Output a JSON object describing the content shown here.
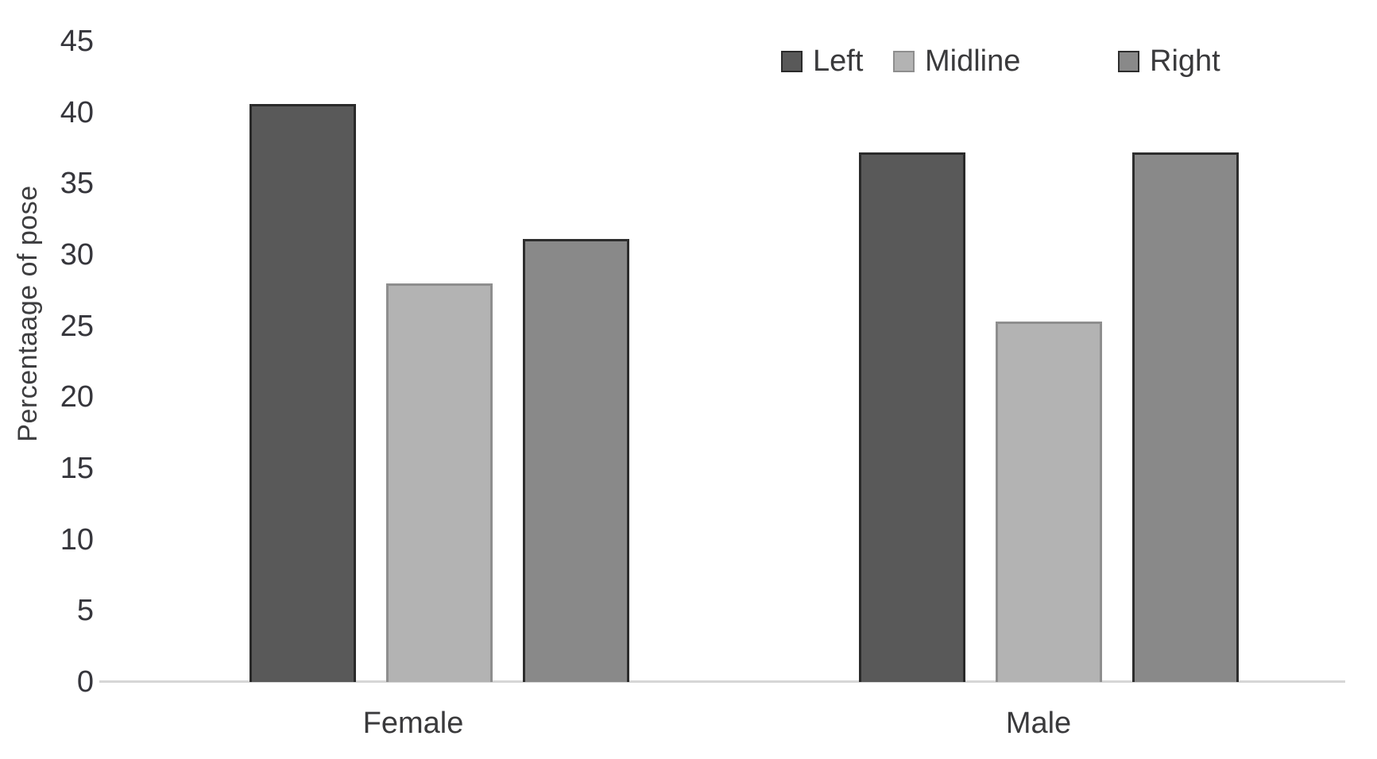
{
  "chart_data": {
    "type": "bar",
    "title": "",
    "xlabel": "",
    "ylabel": "Percentaage of pose",
    "categories": [
      "Female",
      "Male"
    ],
    "series": [
      {
        "name": "Left",
        "values": [
          40.6,
          37.2
        ],
        "color": "#595959",
        "border": "#2a2a2a"
      },
      {
        "name": "Midline",
        "values": [
          28.0,
          25.3
        ],
        "color": "#b3b3b3",
        "border": "#8e8e8e"
      },
      {
        "name": "Right",
        "values": [
          31.1,
          37.2
        ],
        "color": "#898989",
        "border": "#2d2d2d"
      }
    ],
    "ylim": [
      0,
      45
    ],
    "yticks": [
      0,
      5,
      10,
      15,
      20,
      25,
      30,
      35,
      40,
      45
    ],
    "grid": false,
    "legend_position": "top",
    "axis_line_color": "#d6d6d6",
    "text_color": "#3a3a3c"
  }
}
